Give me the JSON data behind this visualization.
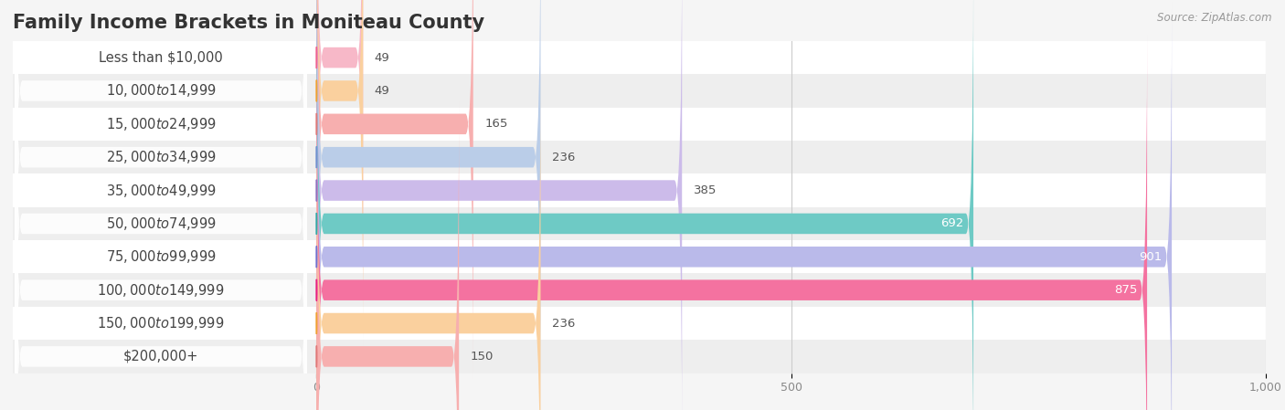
{
  "title": "Family Income Brackets in Moniteau County",
  "source": "Source: ZipAtlas.com",
  "categories": [
    "Less than $10,000",
    "$10,000 to $14,999",
    "$15,000 to $24,999",
    "$25,000 to $34,999",
    "$35,000 to $49,999",
    "$50,000 to $74,999",
    "$75,000 to $99,999",
    "$100,000 to $149,999",
    "$150,000 to $199,999",
    "$200,000+"
  ],
  "values": [
    49,
    49,
    165,
    236,
    385,
    692,
    901,
    875,
    236,
    150
  ],
  "bar_colors": [
    "#F7B8C8",
    "#FAD09E",
    "#F7AFAF",
    "#BACDE8",
    "#CCBBEA",
    "#6ECAC5",
    "#BABAEA",
    "#F472A0",
    "#FAD09E",
    "#F7AFAF"
  ],
  "dot_colors": [
    "#F06090",
    "#F0A030",
    "#E07878",
    "#7090D0",
    "#9070C0",
    "#30A8A8",
    "#7070D0",
    "#E82080",
    "#F0A030",
    "#E07878"
  ],
  "xlim": [
    -320,
    1000
  ],
  "data_xlim": [
    0,
    1000
  ],
  "xticks": [
    0,
    500,
    1000
  ],
  "xtick_labels": [
    "0",
    "500",
    "1,000"
  ],
  "bg_color": "#F5F5F5",
  "title_fontsize": 15,
  "label_fontsize": 10.5,
  "value_fontsize": 9.5,
  "bar_height": 0.62
}
